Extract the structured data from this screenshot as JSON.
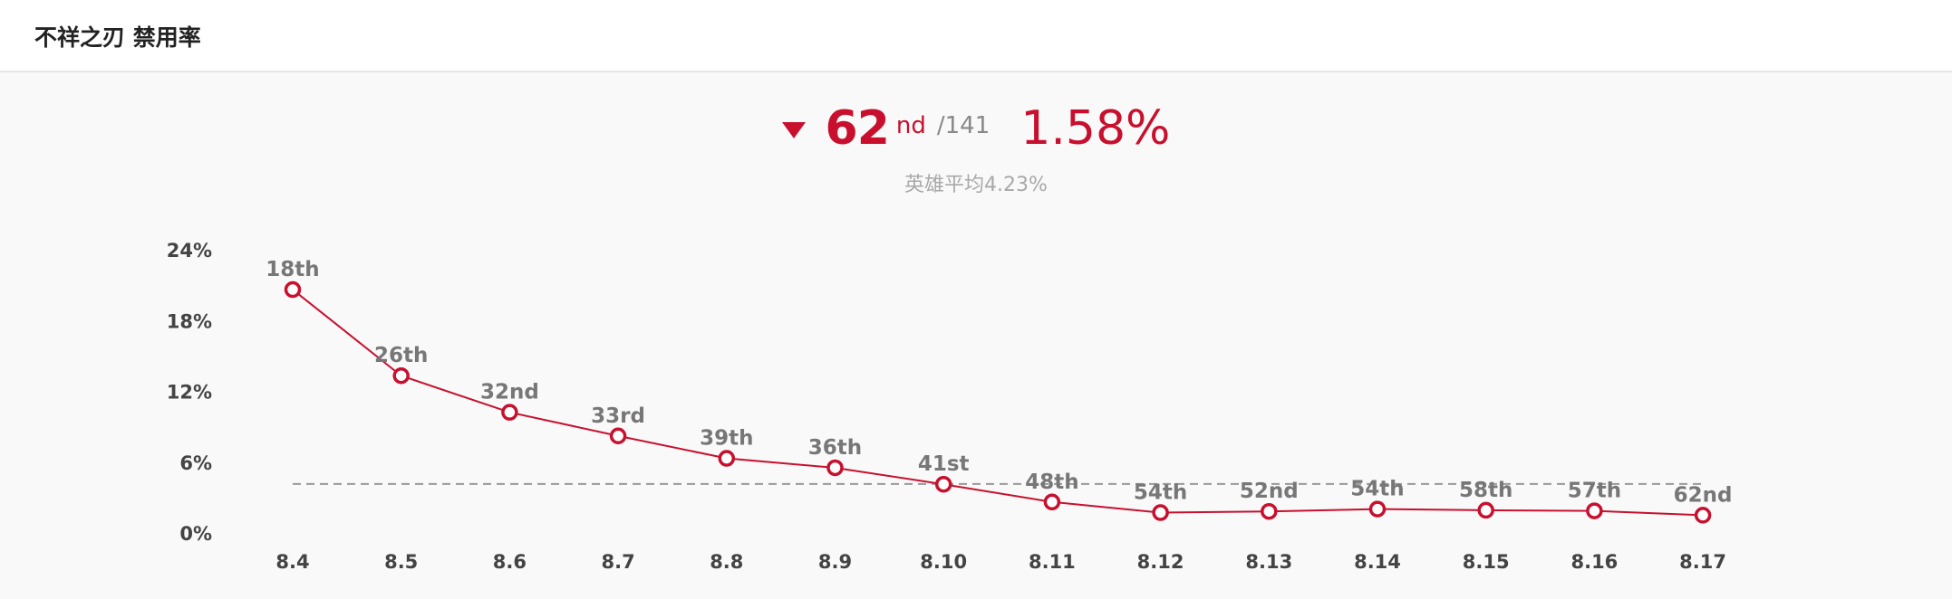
{
  "header": {
    "title": "不祥之刃 禁用率"
  },
  "summary": {
    "trend_icon": "down-triangle-icon",
    "rank_number": "62",
    "rank_suffix": "nd",
    "rank_total": "/141",
    "rate": "1.58%",
    "average_text": "英雄平均4.23%"
  },
  "colors": {
    "accent": "#c8102e",
    "muted_text": "#888888",
    "average_line": "#999999",
    "panel_background": "#f9f9f9"
  },
  "chart_data": {
    "type": "line",
    "title": "",
    "xlabel": "",
    "ylabel": "",
    "categories": [
      "8.4",
      "8.5",
      "8.6",
      "8.7",
      "8.8",
      "8.9",
      "8.10",
      "8.11",
      "8.12",
      "8.13",
      "8.14",
      "8.15",
      "8.16",
      "8.17"
    ],
    "series": [
      {
        "values": [
          20.7,
          13.4,
          10.3,
          8.3,
          6.4,
          5.6,
          4.2,
          2.7,
          1.8,
          1.9,
          2.1,
          2.0,
          1.95,
          1.58
        ],
        "ranks": [
          "18",
          "26",
          "32",
          "33",
          "39",
          "36",
          "41",
          "48",
          "54",
          "52",
          "54",
          "58",
          "57",
          "62"
        ],
        "rank_suffixes": [
          "th",
          "th",
          "nd",
          "rd",
          "th",
          "th",
          "st",
          "th",
          "th",
          "nd",
          "th",
          "th",
          "th",
          "nd"
        ]
      }
    ],
    "average_line": 4.23,
    "ylim": [
      0,
      24
    ],
    "yticks": [
      0,
      6,
      12,
      18,
      24
    ],
    "ytick_labels": [
      "0%",
      "6%",
      "12%",
      "18%",
      "24%"
    ],
    "grid": false,
    "legend": "none"
  }
}
